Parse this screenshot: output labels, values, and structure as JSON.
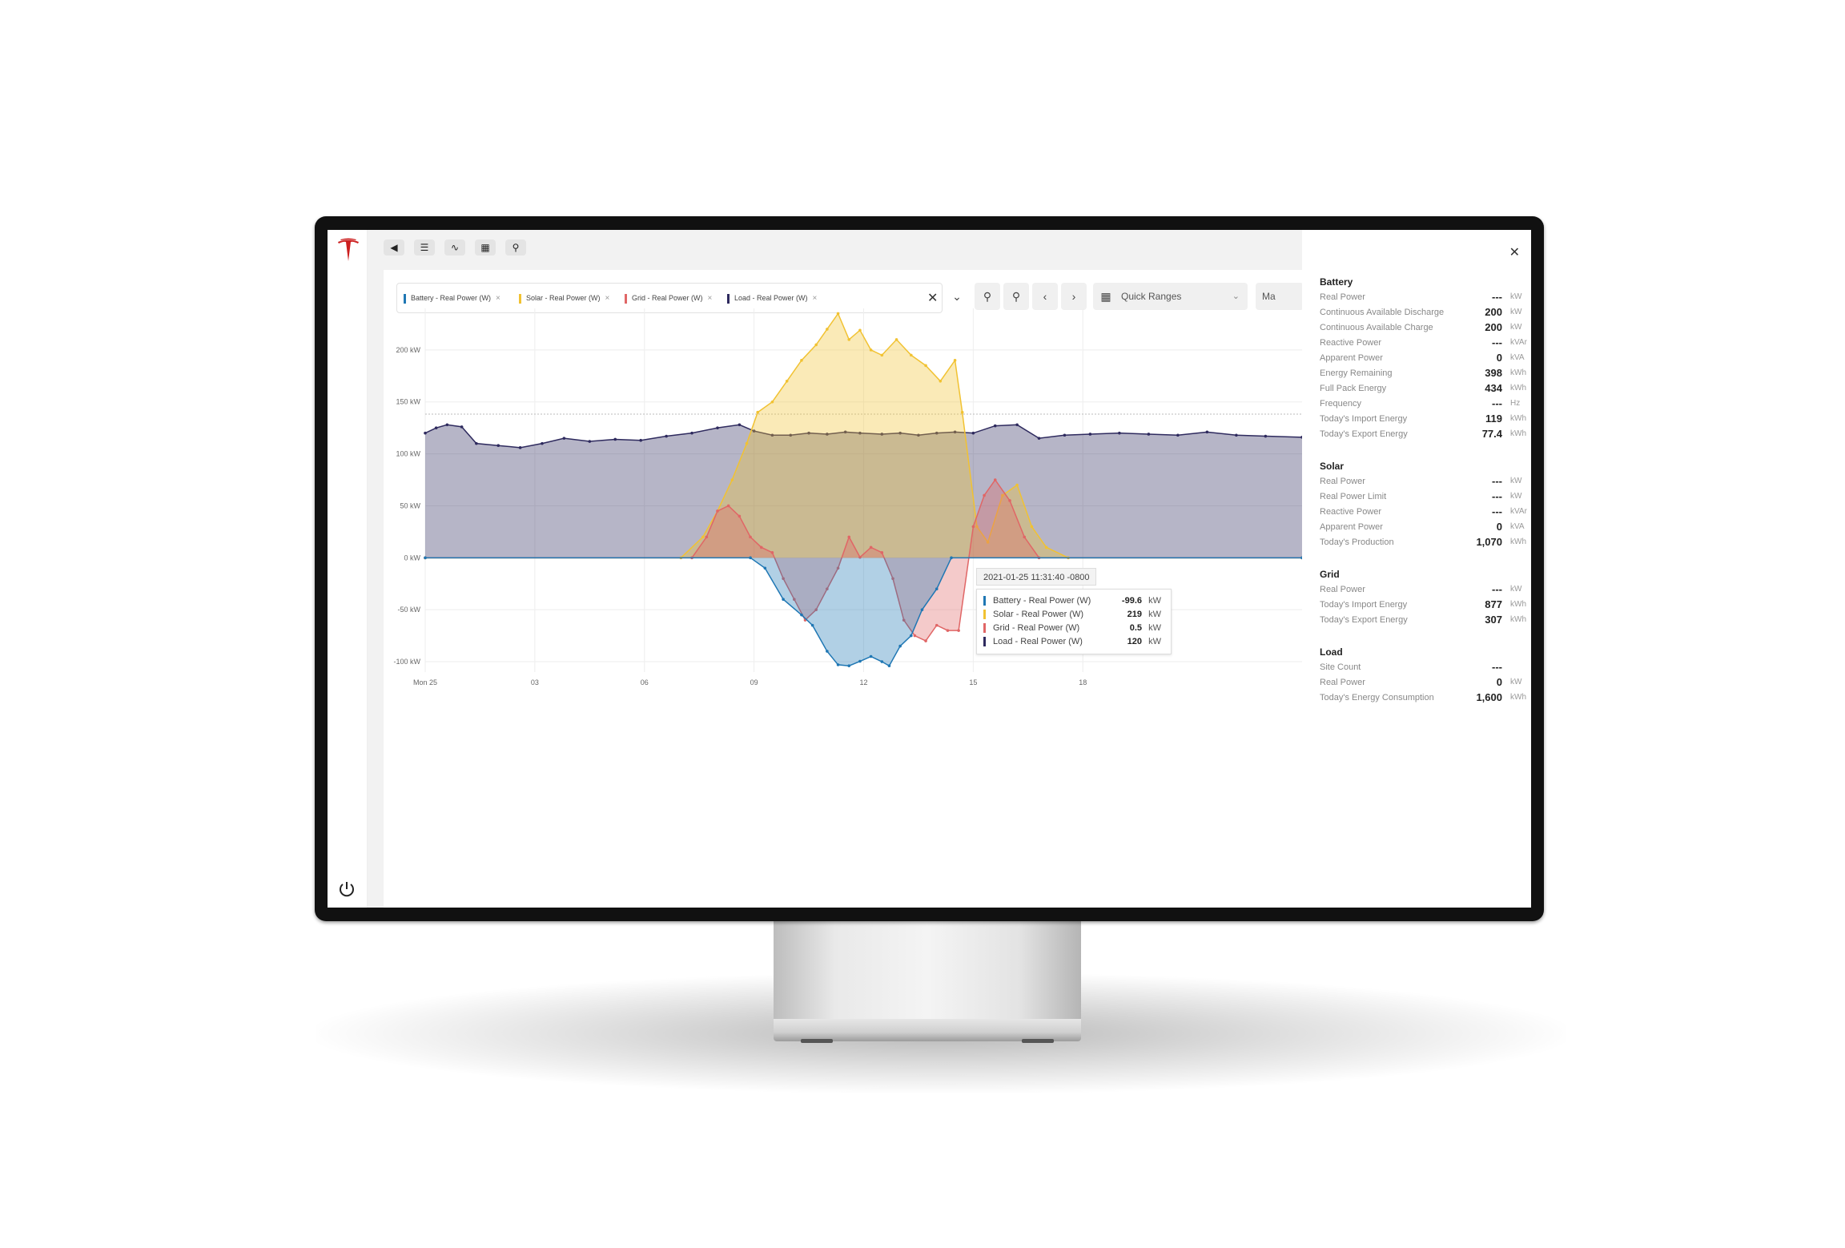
{
  "toolbar": {
    "icons": [
      "back-arrow-icon",
      "list-icon",
      "pulse-icon",
      "chart-icon",
      "search-icon"
    ]
  },
  "filters": [
    {
      "label": "Battery - Real Power (W)",
      "color": "#1f77b4"
    },
    {
      "label": "Solar - Real Power (W)",
      "color": "#f1c232"
    },
    {
      "label": "Grid - Real Power (W)",
      "color": "#e06666"
    },
    {
      "label": "Load - Real Power (W)",
      "color": "#2e2a5e"
    }
  ],
  "controls": {
    "quick_ranges": "Quick Ranges",
    "ma_label": "Ma"
  },
  "chart_data": {
    "type": "area",
    "x_ticks": [
      "Mon 25",
      "03",
      "06",
      "09",
      "12",
      "15",
      "18"
    ],
    "y_ticks": [
      "200 kW",
      "150 kW",
      "100 kW",
      "50 kW",
      "0 kW",
      "-50 kW",
      "-100 kW"
    ],
    "ylim": [
      -110,
      240
    ],
    "xlim": [
      0,
      24
    ],
    "series": [
      {
        "name": "Battery - Real Power (W)",
        "color": "#1f77b4",
        "x": [
          0,
          8.9,
          9.3,
          9.8,
          10.3,
          10.6,
          11.0,
          11.3,
          11.6,
          11.9,
          12.2,
          12.5,
          12.7,
          13.0,
          13.3,
          13.6,
          14.0,
          14.4,
          24
        ],
        "y": [
          0,
          0,
          -10,
          -40,
          -55,
          -65,
          -90,
          -103,
          -104,
          -99.6,
          -95,
          -100,
          -104,
          -85,
          -75,
          -50,
          -30,
          0,
          0
        ]
      },
      {
        "name": "Solar - Real Power (W)",
        "color": "#f1c232",
        "x": [
          0,
          7.0,
          7.6,
          8.0,
          8.4,
          8.8,
          9.1,
          9.5,
          9.9,
          10.3,
          10.7,
          11.0,
          11.3,
          11.6,
          11.9,
          12.2,
          12.5,
          12.9,
          13.3,
          13.7,
          14.1,
          14.5,
          14.7,
          15.1,
          15.4,
          15.8,
          16.2,
          16.6,
          17.0,
          17.6,
          24
        ],
        "y": [
          0,
          0,
          20,
          45,
          75,
          110,
          140,
          150,
          170,
          190,
          205,
          220,
          235,
          210,
          219,
          200,
          195,
          210,
          195,
          185,
          170,
          190,
          140,
          30,
          15,
          60,
          70,
          30,
          10,
          0,
          0
        ]
      },
      {
        "name": "Grid - Real Power (W)",
        "color": "#e06666",
        "x": [
          0,
          7.3,
          7.7,
          8.0,
          8.3,
          8.6,
          8.9,
          9.2,
          9.5,
          9.8,
          10.1,
          10.4,
          10.7,
          11.0,
          11.3,
          11.6,
          11.9,
          12.2,
          12.5,
          12.8,
          13.1,
          13.4,
          13.7,
          14.0,
          14.3,
          14.6,
          15.0,
          15.3,
          15.6,
          16.0,
          16.4,
          16.8,
          24
        ],
        "y": [
          0,
          0,
          20,
          45,
          50,
          40,
          20,
          10,
          5,
          -20,
          -40,
          -60,
          -50,
          -30,
          -10,
          20,
          0.5,
          10,
          5,
          -20,
          -60,
          -75,
          -80,
          -65,
          -70,
          -70,
          30,
          60,
          75,
          55,
          20,
          0,
          0
        ]
      },
      {
        "name": "Load - Real Power (W)",
        "color": "#2e2a5e",
        "x": [
          0,
          0.3,
          0.6,
          1.0,
          1.4,
          2.0,
          2.6,
          3.2,
          3.8,
          4.5,
          5.2,
          5.9,
          6.6,
          7.3,
          8.0,
          8.6,
          9.0,
          9.5,
          10.0,
          10.5,
          11.0,
          11.5,
          11.9,
          12.5,
          13.0,
          13.5,
          14.0,
          14.5,
          15.0,
          15.6,
          16.2,
          16.8,
          17.5,
          18.2,
          19.0,
          19.8,
          20.6,
          21.4,
          22.2,
          23.0,
          24
        ],
        "y": [
          120,
          125,
          128,
          126,
          110,
          108,
          106,
          110,
          115,
          112,
          114,
          113,
          117,
          120,
          125,
          128,
          122,
          118,
          118,
          120,
          119,
          121,
          120,
          119,
          120,
          118,
          120,
          121,
          120,
          127,
          128,
          115,
          118,
          119,
          120,
          119,
          118,
          121,
          118,
          117,
          116
        ]
      }
    ]
  },
  "tooltip": {
    "title": "2021-01-25 11:31:40 -0800",
    "rows": [
      {
        "label": "Battery - Real Power (W)",
        "value": "-99.6",
        "unit": "kW",
        "color": "#1f77b4"
      },
      {
        "label": "Solar - Real Power (W)",
        "value": "219",
        "unit": "kW",
        "color": "#f1c232"
      },
      {
        "label": "Grid - Real Power (W)",
        "value": "0.5",
        "unit": "kW",
        "color": "#e06666"
      },
      {
        "label": "Load - Real Power (W)",
        "value": "120",
        "unit": "kW",
        "color": "#2e2a5e"
      }
    ]
  },
  "panel": {
    "sections": [
      {
        "title": "Battery",
        "rows": [
          {
            "label": "Real Power",
            "value": "---",
            "unit": "kW"
          },
          {
            "label": "Continuous Available Discharge",
            "value": "200",
            "unit": "kW"
          },
          {
            "label": "Continuous Available Charge",
            "value": "200",
            "unit": "kW"
          },
          {
            "label": "Reactive Power",
            "value": "---",
            "unit": "kVAr"
          },
          {
            "label": "Apparent Power",
            "value": "0",
            "unit": "kVA"
          },
          {
            "label": "Energy Remaining",
            "value": "398",
            "unit": "kWh"
          },
          {
            "label": "Full Pack Energy",
            "value": "434",
            "unit": "kWh"
          },
          {
            "label": "Frequency",
            "value": "---",
            "unit": "Hz"
          },
          {
            "label": "Today's Import Energy",
            "value": "119",
            "unit": "kWh"
          },
          {
            "label": "Today's Export Energy",
            "value": "77.4",
            "unit": "kWh"
          }
        ]
      },
      {
        "title": "Solar",
        "rows": [
          {
            "label": "Real Power",
            "value": "---",
            "unit": "kW"
          },
          {
            "label": "Real Power Limit",
            "value": "---",
            "unit": "kW"
          },
          {
            "label": "Reactive Power",
            "value": "---",
            "unit": "kVAr"
          },
          {
            "label": "Apparent Power",
            "value": "0",
            "unit": "kVA"
          },
          {
            "label": "Today's Production",
            "value": "1,070",
            "unit": "kWh"
          }
        ]
      },
      {
        "title": "Grid",
        "rows": [
          {
            "label": "Real Power",
            "value": "---",
            "unit": "kW"
          },
          {
            "label": "Today's Import Energy",
            "value": "877",
            "unit": "kWh"
          },
          {
            "label": "Today's Export Energy",
            "value": "307",
            "unit": "kWh"
          }
        ]
      },
      {
        "title": "Load",
        "rows": [
          {
            "label": "Site Count",
            "value": "---",
            "unit": ""
          },
          {
            "label": "Real Power",
            "value": "0",
            "unit": "kW"
          },
          {
            "label": "Today's Energy Consumption",
            "value": "1,600",
            "unit": "kWh"
          }
        ]
      }
    ]
  }
}
